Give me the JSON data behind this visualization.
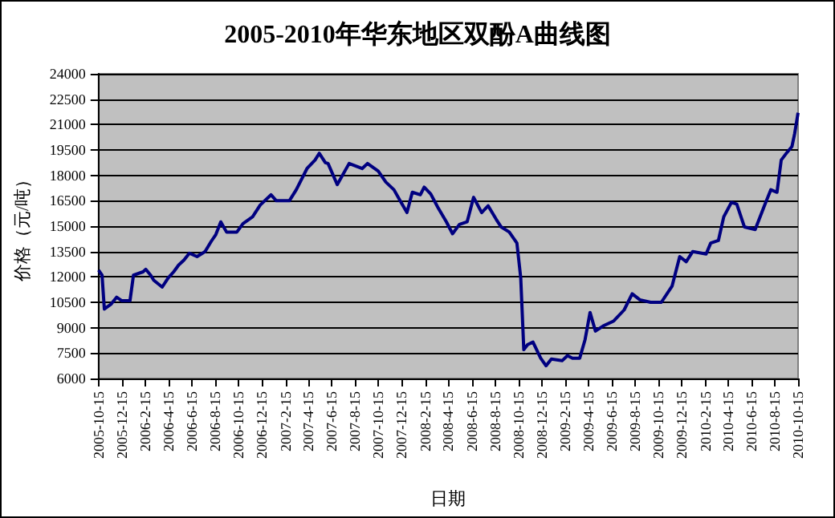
{
  "chart_data": {
    "type": "line",
    "title": "2005-2010年华东地区双酚A曲线图",
    "xlabel": "日期",
    "ylabel": "价格（元/吨）",
    "x": [
      "2005-10-15",
      "2005-10-24",
      "2005-10-30",
      "2005-11-17",
      "2005-12-01",
      "2005-12-14",
      "2006-01-05",
      "2006-01-14",
      "2006-02-08",
      "2006-02-15",
      "2006-02-28",
      "2006-03-08",
      "2006-03-30",
      "2006-04-15",
      "2006-04-29",
      "2006-05-12",
      "2006-05-26",
      "2006-06-09",
      "2006-06-29",
      "2006-07-20",
      "2006-08-05",
      "2006-08-17",
      "2006-08-30",
      "2006-09-14",
      "2006-10-11",
      "2006-10-27",
      "2006-11-21",
      "2006-12-11",
      "2007-01-08",
      "2007-01-22",
      "2007-02-25",
      "2007-03-15",
      "2007-04-12",
      "2007-05-03",
      "2007-05-14",
      "2007-05-30",
      "2007-06-06",
      "2007-06-30",
      "2007-07-31",
      "2007-09-03",
      "2007-09-17",
      "2007-10-15",
      "2007-11-04",
      "2007-11-25",
      "2007-12-15",
      "2007-12-29",
      "2008-01-12",
      "2008-02-02",
      "2008-02-12",
      "2008-02-29",
      "2008-03-20",
      "2008-04-10",
      "2008-04-26",
      "2008-05-14",
      "2008-06-03",
      "2008-06-20",
      "2008-07-11",
      "2008-07-28",
      "2008-08-18",
      "2008-08-31",
      "2008-09-21",
      "2008-10-11",
      "2008-10-21",
      "2008-10-29",
      "2008-11-08",
      "2008-11-22",
      "2008-12-12",
      "2008-12-26",
      "2009-01-09",
      "2009-02-06",
      "2009-02-20",
      "2009-03-05",
      "2009-03-24",
      "2009-04-07",
      "2009-04-20",
      "2009-05-04",
      "2009-05-24",
      "2009-06-21",
      "2009-07-18",
      "2009-08-08",
      "2009-08-28",
      "2009-09-25",
      "2009-10-23",
      "2009-11-20",
      "2009-12-10",
      "2009-12-27",
      "2010-01-13",
      "2010-02-17",
      "2010-03-01",
      "2010-03-21",
      "2010-04-04",
      "2010-04-24",
      "2010-05-08",
      "2010-05-28",
      "2010-06-25",
      "2010-07-19",
      "2010-08-05",
      "2010-08-21",
      "2010-09-01",
      "2010-09-16",
      "2010-09-29",
      "2010-10-06",
      "2010-10-15"
    ],
    "series": [
      {
        "color": "#000080",
        "values": [
          12400,
          12100,
          10100,
          10400,
          10800,
          10600,
          10600,
          12100,
          12300,
          12450,
          12100,
          11800,
          11400,
          11950,
          12300,
          12700,
          13000,
          13400,
          13200,
          13500,
          14100,
          14500,
          15250,
          14650,
          14650,
          15150,
          15550,
          16250,
          16850,
          16500,
          16500,
          17150,
          18400,
          18900,
          19300,
          18750,
          18700,
          17450,
          18700,
          18400,
          18700,
          18250,
          17600,
          17150,
          16350,
          15800,
          17000,
          16850,
          17300,
          16900,
          16050,
          15250,
          14550,
          15100,
          15250,
          16700,
          15800,
          16200,
          15400,
          14950,
          14650,
          14000,
          11950,
          7700,
          8000,
          8150,
          7200,
          6750,
          7150,
          7050,
          7350,
          7200,
          7200,
          8300,
          9900,
          8800,
          9100,
          9400,
          10050,
          11000,
          10650,
          10500,
          10500,
          11450,
          13200,
          12900,
          13500,
          13350,
          14000,
          14150,
          15550,
          16400,
          16300,
          14950,
          14800,
          16200,
          17150,
          17000,
          18900,
          19350,
          19700,
          20450,
          21700
        ]
      }
    ],
    "xlim": [
      "2005-10-15",
      "2010-10-15"
    ],
    "xticks": [
      {
        "value": "2005-10-15",
        "label": "2005-10-15"
      },
      {
        "value": "2005-12-15",
        "label": "2005-12-15"
      },
      {
        "value": "2006-02-15",
        "label": "2006-2-15"
      },
      {
        "value": "2006-04-15",
        "label": "2006-4-15"
      },
      {
        "value": "2006-06-15",
        "label": "2006-6-15"
      },
      {
        "value": "2006-08-15",
        "label": "2006-8-15"
      },
      {
        "value": "2006-10-15",
        "label": "2006-10-15"
      },
      {
        "value": "2006-12-15",
        "label": "2006-12-15"
      },
      {
        "value": "2007-02-15",
        "label": "2007-2-15"
      },
      {
        "value": "2007-04-15",
        "label": "2007-4-15"
      },
      {
        "value": "2007-06-15",
        "label": "2007-6-15"
      },
      {
        "value": "2007-08-15",
        "label": "2007-8-15"
      },
      {
        "value": "2007-10-15",
        "label": "2007-10-15"
      },
      {
        "value": "2007-12-15",
        "label": "2007-12-15"
      },
      {
        "value": "2008-02-15",
        "label": "2008-2-15"
      },
      {
        "value": "2008-04-15",
        "label": "2008-4-15"
      },
      {
        "value": "2008-06-15",
        "label": "2008-6-15"
      },
      {
        "value": "2008-08-15",
        "label": "2008-8-15"
      },
      {
        "value": "2008-10-15",
        "label": "2008-10-15"
      },
      {
        "value": "2008-12-15",
        "label": "2008-12-15"
      },
      {
        "value": "2009-02-15",
        "label": "2009-2-15"
      },
      {
        "value": "2009-04-15",
        "label": "2009-4-15"
      },
      {
        "value": "2009-06-15",
        "label": "2009-6-15"
      },
      {
        "value": "2009-08-15",
        "label": "2009-8-15"
      },
      {
        "value": "2009-10-15",
        "label": "2009-10-15"
      },
      {
        "value": "2009-12-15",
        "label": "2009-12-15"
      },
      {
        "value": "2010-02-15",
        "label": "2010-2-15"
      },
      {
        "value": "2010-04-15",
        "label": "2010-4-15"
      },
      {
        "value": "2010-06-15",
        "label": "2010-6-15"
      },
      {
        "value": "2010-08-15",
        "label": "2010-8-15"
      },
      {
        "value": "2010-10-15",
        "label": "2010-10-15"
      }
    ],
    "ylim": [
      6000,
      24000
    ],
    "yticks": [
      6000,
      7500,
      9000,
      10500,
      12000,
      13500,
      15000,
      16500,
      18000,
      19500,
      21000,
      22500,
      24000
    ],
    "grid": "y",
    "marker": "none",
    "line_style": "solid"
  }
}
